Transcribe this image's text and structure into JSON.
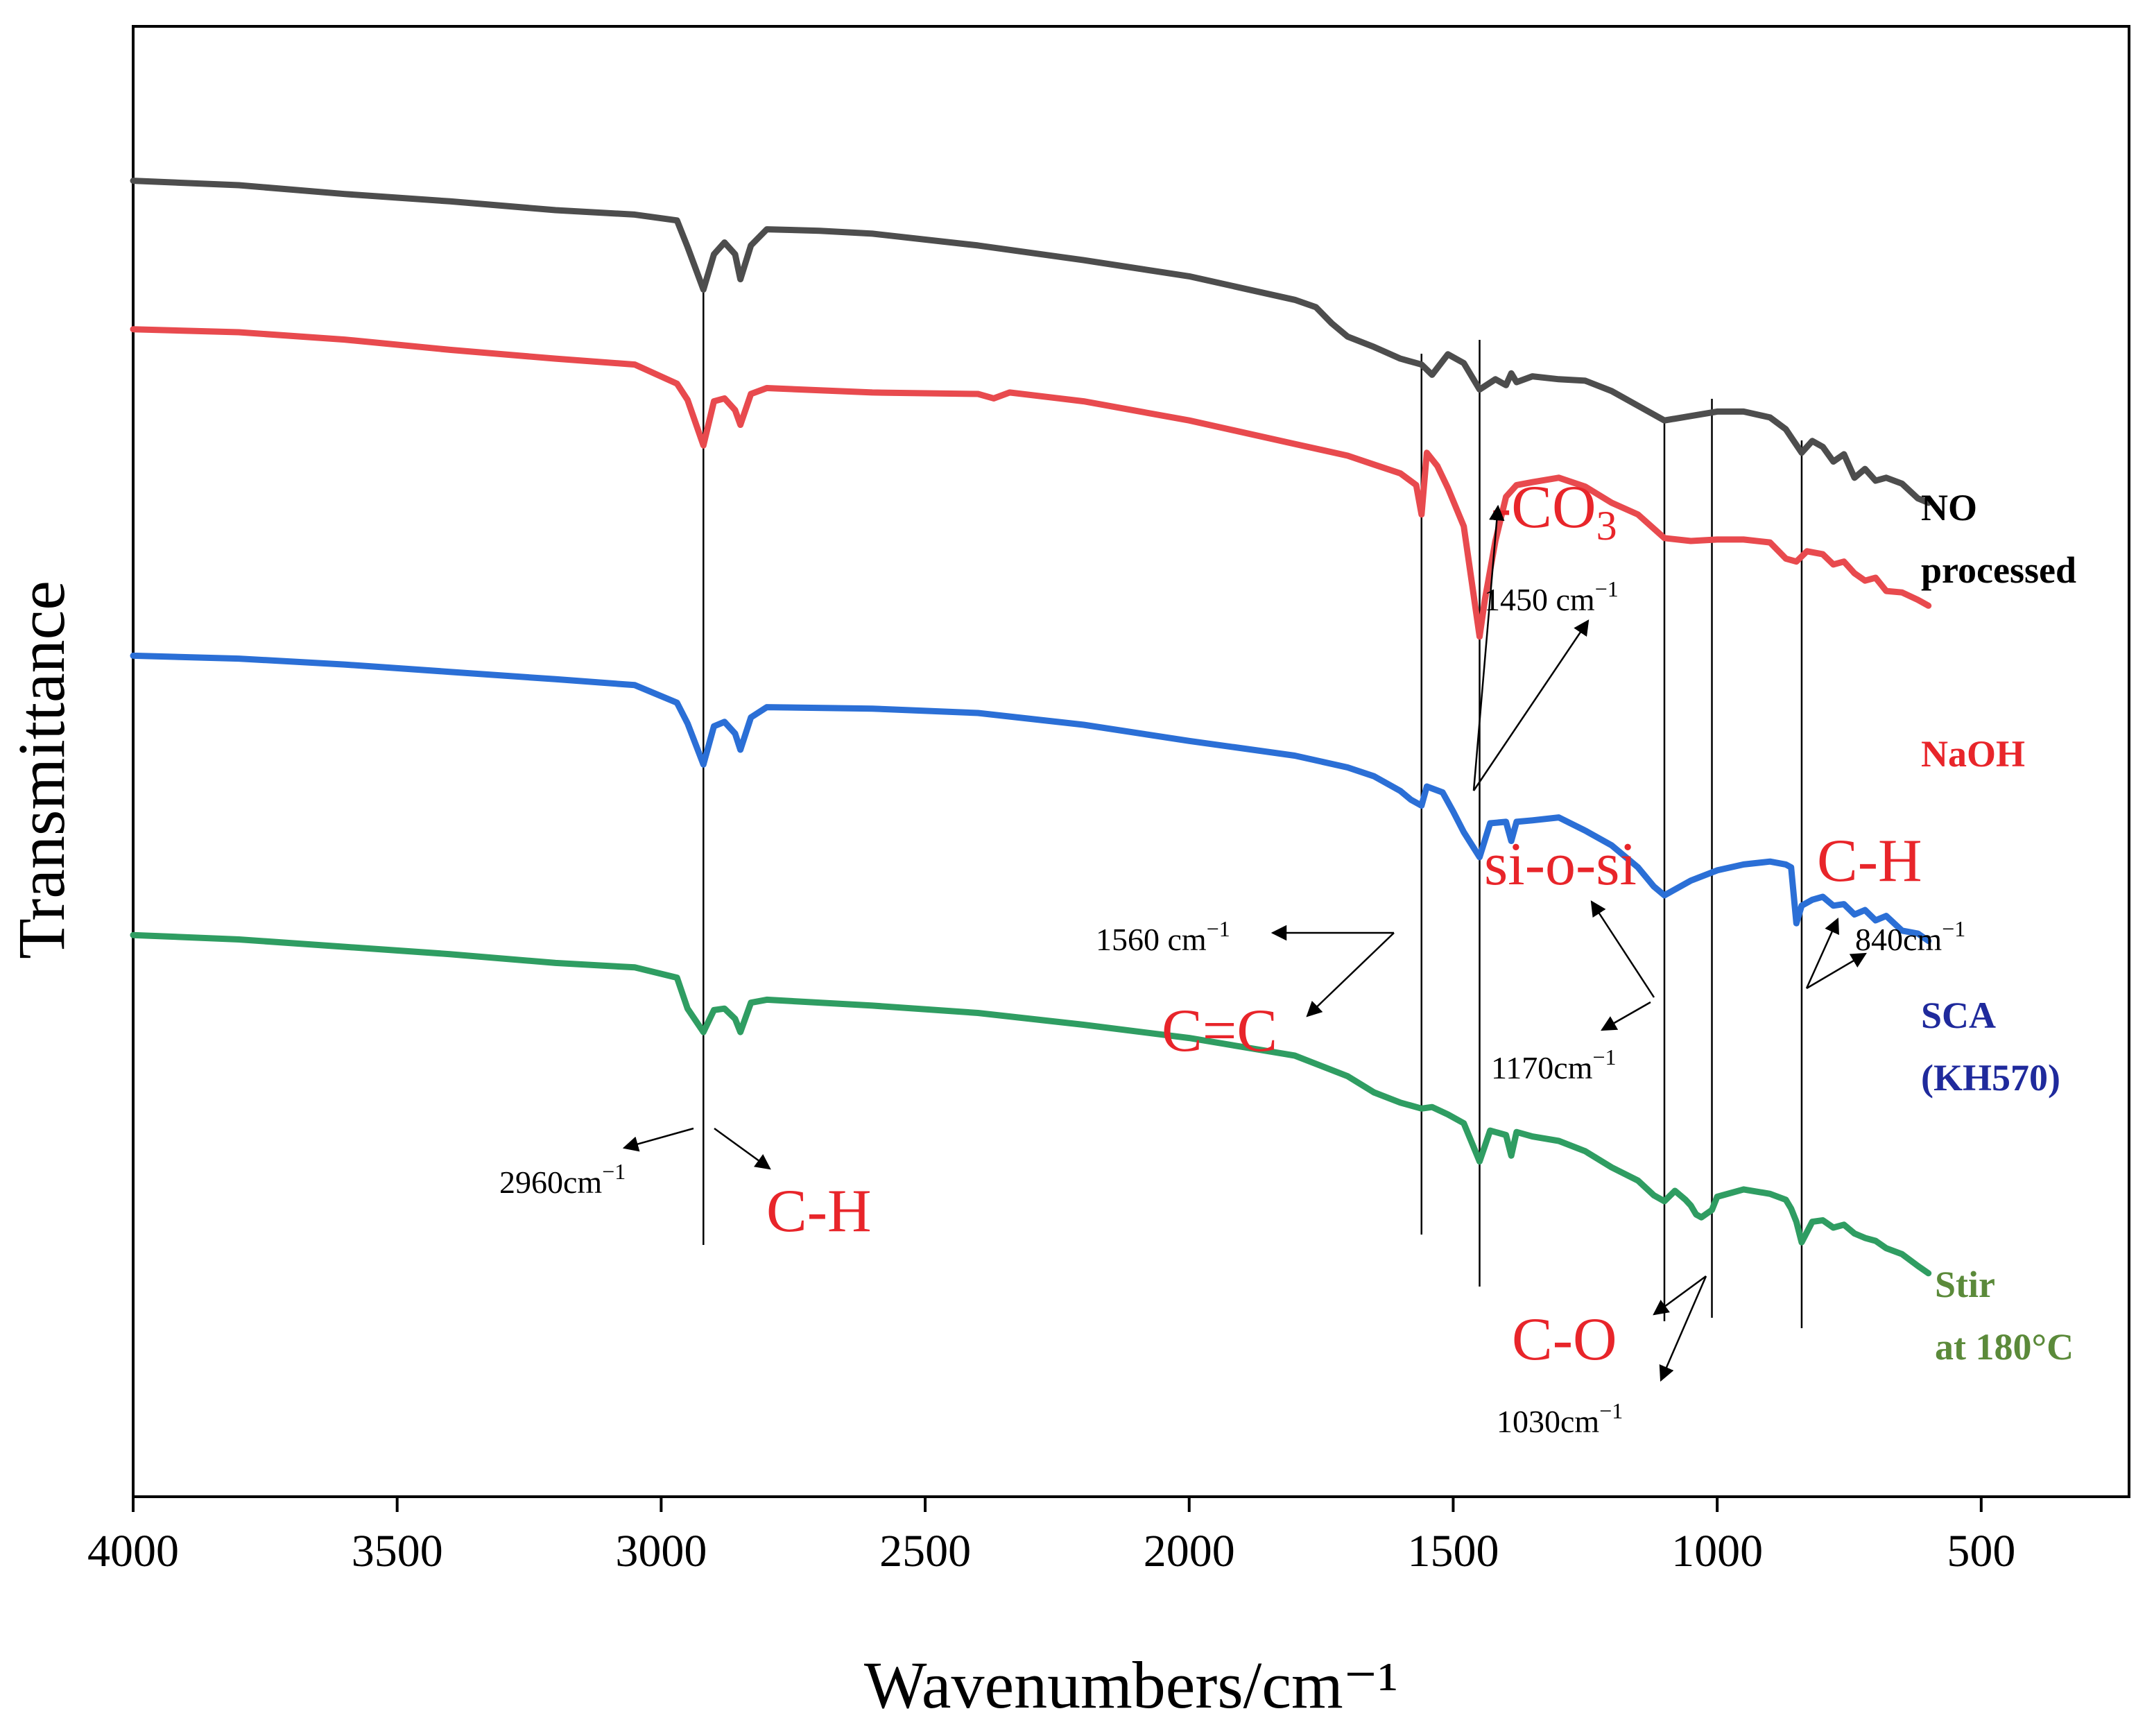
{
  "chart_data": {
    "type": "line",
    "title": "",
    "xlabel": "Wavenumbers/cm⁻¹",
    "ylabel": "Transmittance",
    "xlim": [
      4000,
      220
    ],
    "ylim": [
      0,
      100
    ],
    "x_ticks": [
      4000,
      3500,
      3000,
      2500,
      2000,
      1500,
      1000,
      500
    ],
    "x_tick_labels": [
      "4000",
      "3500",
      "3000",
      "2500",
      "2000",
      "1500",
      "1000",
      "500"
    ],
    "y_ticks_shown": false,
    "grid": false,
    "reference_lines_x": [
      2920,
      1560,
      1450,
      1100,
      1010,
      840
    ],
    "series": [
      {
        "name": "NO processed",
        "label_lines": [
          "NO",
          "processed"
        ],
        "color": "#4d4d4d",
        "x": [
          4000,
          3800,
          3600,
          3400,
          3200,
          3050,
          2970,
          2950,
          2920,
          2900,
          2880,
          2860,
          2850,
          2830,
          2800,
          2700,
          2600,
          2400,
          2200,
          2000,
          1800,
          1760,
          1730,
          1700,
          1650,
          1600,
          1560,
          1540,
          1510,
          1480,
          1450,
          1420,
          1400,
          1390,
          1380,
          1350,
          1300,
          1250,
          1200,
          1150,
          1100,
          1050,
          1000,
          950,
          900,
          870,
          840,
          820,
          800,
          780,
          760,
          740,
          720,
          700,
          680,
          650,
          620,
          600
        ],
        "y": [
          89.5,
          89.2,
          88.6,
          88.1,
          87.5,
          87.2,
          86.8,
          85.0,
          82.1,
          84.5,
          85.3,
          84.5,
          82.8,
          85.1,
          86.2,
          86.1,
          85.9,
          85.1,
          84.1,
          83.0,
          81.4,
          80.9,
          79.8,
          78.9,
          78.2,
          77.4,
          77.0,
          76.3,
          77.7,
          77.1,
          75.3,
          76.0,
          75.6,
          76.4,
          75.8,
          76.2,
          76.0,
          75.9,
          75.2,
          74.2,
          73.2,
          73.5,
          73.8,
          73.8,
          73.4,
          72.6,
          71.0,
          71.8,
          71.4,
          70.4,
          70.9,
          69.3,
          69.9,
          69.1,
          69.3,
          68.9,
          67.9,
          67.6
        ]
      },
      {
        "name": "NaOH",
        "label_lines": [
          "NaOH"
        ],
        "color": "#e84a4e",
        "x": [
          4000,
          3800,
          3600,
          3400,
          3200,
          3050,
          2970,
          2950,
          2920,
          2900,
          2880,
          2860,
          2850,
          2830,
          2800,
          2600,
          2400,
          2370,
          2340,
          2200,
          2000,
          1800,
          1700,
          1650,
          1600,
          1570,
          1560,
          1550,
          1530,
          1510,
          1480,
          1450,
          1440,
          1420,
          1400,
          1380,
          1350,
          1300,
          1250,
          1200,
          1150,
          1100,
          1050,
          1000,
          950,
          900,
          870,
          850,
          830,
          800,
          780,
          760,
          740,
          720,
          700,
          680,
          650,
          620,
          600
        ],
        "y": [
          79.4,
          79.2,
          78.7,
          78.0,
          77.4,
          77.0,
          75.7,
          74.6,
          71.5,
          74.5,
          74.7,
          73.9,
          72.9,
          75.0,
          75.4,
          75.1,
          75.0,
          74.7,
          75.1,
          74.5,
          73.2,
          71.6,
          70.8,
          70.2,
          69.6,
          68.8,
          66.8,
          71.0,
          70.1,
          68.6,
          66.0,
          58.5,
          61.0,
          65.0,
          68.0,
          68.8,
          69.0,
          69.3,
          68.7,
          67.6,
          66.8,
          65.2,
          65.0,
          65.1,
          65.1,
          64.9,
          63.8,
          63.6,
          64.3,
          64.1,
          63.4,
          63.6,
          62.8,
          62.3,
          62.5,
          61.6,
          61.5,
          61.0,
          60.6
        ]
      },
      {
        "name": "SCA (KH570)",
        "label_lines": [
          "SCA",
          "(KH570)"
        ],
        "color": "#2b6fd6",
        "x": [
          4000,
          3800,
          3600,
          3400,
          3200,
          3050,
          2970,
          2950,
          2920,
          2900,
          2880,
          2860,
          2850,
          2830,
          2800,
          2600,
          2400,
          2200,
          2000,
          1800,
          1700,
          1650,
          1600,
          1580,
          1560,
          1550,
          1520,
          1500,
          1480,
          1450,
          1430,
          1400,
          1390,
          1380,
          1350,
          1300,
          1250,
          1200,
          1150,
          1120,
          1100,
          1080,
          1050,
          1000,
          950,
          900,
          870,
          860,
          850,
          840,
          820,
          800,
          780,
          760,
          740,
          720,
          700,
          680,
          650,
          620,
          600
        ],
        "y": [
          57.2,
          57.0,
          56.6,
          56.1,
          55.6,
          55.2,
          54.0,
          52.6,
          49.8,
          52.4,
          52.7,
          51.9,
          50.8,
          53.0,
          53.7,
          53.6,
          53.3,
          52.5,
          51.4,
          50.4,
          49.6,
          49.0,
          48.0,
          47.4,
          47.0,
          48.3,
          47.9,
          46.6,
          45.2,
          43.5,
          45.8,
          45.9,
          44.6,
          45.9,
          46.0,
          46.2,
          45.3,
          44.3,
          42.8,
          41.5,
          40.9,
          41.3,
          41.9,
          42.6,
          43.0,
          43.2,
          43.0,
          42.8,
          39.0,
          40.2,
          40.6,
          40.8,
          40.2,
          40.3,
          39.6,
          39.9,
          39.2,
          39.5,
          38.5,
          38.3,
          37.8
        ]
      },
      {
        "name": "Stir at 180°C",
        "label_lines": [
          "Stir",
          "at 180°C"
        ],
        "color": "#2f9d62",
        "x": [
          4000,
          3800,
          3600,
          3400,
          3200,
          3050,
          2970,
          2950,
          2920,
          2900,
          2880,
          2860,
          2850,
          2830,
          2800,
          2600,
          2400,
          2200,
          2000,
          1800,
          1700,
          1650,
          1600,
          1560,
          1540,
          1510,
          1480,
          1450,
          1430,
          1400,
          1390,
          1380,
          1350,
          1300,
          1250,
          1200,
          1150,
          1120,
          1100,
          1080,
          1060,
          1050,
          1040,
          1030,
          1010,
          1000,
          950,
          900,
          870,
          860,
          850,
          840,
          820,
          800,
          780,
          760,
          740,
          720,
          700,
          680,
          650,
          620,
          600
        ],
        "y": [
          38.2,
          37.9,
          37.4,
          36.9,
          36.3,
          36.0,
          35.3,
          33.2,
          31.6,
          33.1,
          33.2,
          32.5,
          31.6,
          33.6,
          33.8,
          33.4,
          32.9,
          32.1,
          31.2,
          30.0,
          28.6,
          27.5,
          26.8,
          26.4,
          26.5,
          26.0,
          25.4,
          22.8,
          24.9,
          24.6,
          23.2,
          24.8,
          24.5,
          24.2,
          23.5,
          22.4,
          21.5,
          20.5,
          20.1,
          20.8,
          20.2,
          19.8,
          19.2,
          19.0,
          19.5,
          20.4,
          20.9,
          20.6,
          20.2,
          19.6,
          18.7,
          17.3,
          18.7,
          18.8,
          18.3,
          18.5,
          17.9,
          17.6,
          17.4,
          16.9,
          16.5,
          15.7,
          15.2
        ]
      }
    ],
    "annotations": [
      {
        "id": "co3",
        "text": "-CO",
        "sub": "3",
        "style": "big"
      },
      {
        "id": "co3-wn",
        "text": "1450 cm",
        "sup": "−1",
        "style": "small"
      },
      {
        "id": "cc",
        "text": "C=C",
        "style": "big"
      },
      {
        "id": "cc-wn",
        "text": "1560 cm",
        "sup": "−1",
        "style": "small"
      },
      {
        "id": "ch-left",
        "text": "C-H",
        "style": "big"
      },
      {
        "id": "ch-left-wn",
        "text": "2960cm",
        "sup": "−1",
        "style": "small"
      },
      {
        "id": "siosi",
        "text": "si-o-si",
        "style": "big"
      },
      {
        "id": "siosi-wn",
        "text": "1170cm",
        "sup": "−1",
        "style": "small"
      },
      {
        "id": "ch-right",
        "text": "C-H",
        "style": "big"
      },
      {
        "id": "ch-right-wn",
        "text": "840cm",
        "sup": "−1",
        "style": "small"
      },
      {
        "id": "co",
        "text": "C-O",
        "style": "big"
      },
      {
        "id": "co-wn",
        "text": "1030cm",
        "sup": "−1",
        "style": "small"
      }
    ]
  }
}
